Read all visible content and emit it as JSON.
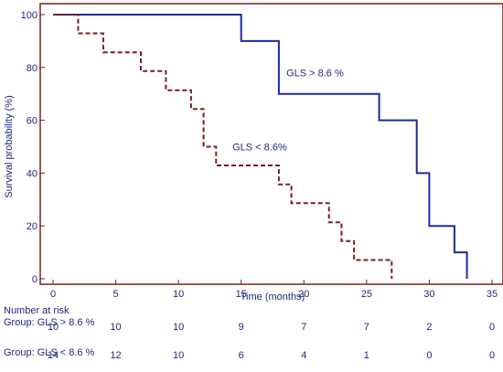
{
  "chart_data": {
    "type": "line",
    "subtype": "kaplan-meier step",
    "title": "",
    "xlabel": "Time (months)",
    "ylabel": "Survival probability (%)",
    "xlim": [
      0,
      35
    ],
    "ylim": [
      0,
      100
    ],
    "xticks": [
      "0",
      "5",
      "10",
      "15",
      "20",
      "25",
      "30",
      "35"
    ],
    "yticks": [
      "0",
      "20",
      "40",
      "60",
      "80",
      "100"
    ],
    "grid": false,
    "frame_color": "#7b1e1e",
    "series": [
      {
        "name": "GLS > 8.6 %",
        "color": "#1f2a9c",
        "style": "solid",
        "points": [
          [
            0,
            100
          ],
          [
            15,
            100
          ],
          [
            15,
            90
          ],
          [
            18,
            90
          ],
          [
            18,
            70
          ],
          [
            26,
            70
          ],
          [
            26,
            60
          ],
          [
            29,
            60
          ],
          [
            29,
            40
          ],
          [
            30,
            40
          ],
          [
            30,
            20
          ],
          [
            32,
            20
          ],
          [
            32,
            10
          ],
          [
            33,
            10
          ],
          [
            33,
            0
          ]
        ]
      },
      {
        "name": "GLS < 8.6%",
        "color": "#7b1e1e",
        "style": "dashed",
        "points": [
          [
            0,
            100
          ],
          [
            2,
            100
          ],
          [
            2,
            92.9
          ],
          [
            4,
            92.9
          ],
          [
            4,
            85.7
          ],
          [
            7,
            85.7
          ],
          [
            7,
            78.6
          ],
          [
            9,
            78.6
          ],
          [
            9,
            71.4
          ],
          [
            11,
            71.4
          ],
          [
            11,
            64.3
          ],
          [
            12,
            64.3
          ],
          [
            12,
            50
          ],
          [
            13,
            50
          ],
          [
            13,
            42.9
          ],
          [
            18,
            42.9
          ],
          [
            18,
            35.7
          ],
          [
            19,
            35.7
          ],
          [
            19,
            28.6
          ],
          [
            22,
            28.6
          ],
          [
            22,
            21.4
          ],
          [
            23,
            21.4
          ],
          [
            23,
            14.3
          ],
          [
            24,
            14.3
          ],
          [
            24,
            7.1
          ],
          [
            27,
            7.1
          ],
          [
            27,
            0
          ]
        ]
      }
    ],
    "annotations": [
      {
        "text": "GLS > 8.6 %",
        "x": 18.6,
        "y": 78
      },
      {
        "text": "GLS < 8.6%",
        "x": 14.3,
        "y": 50
      }
    ]
  },
  "risk_table": {
    "heading": "Number at risk",
    "time_points": [
      0,
      5,
      10,
      15,
      20,
      25,
      30,
      35
    ],
    "groups": [
      {
        "label": "Group: GLS > 8.6 %",
        "values": [
          "10",
          "10",
          "10",
          "9",
          "7",
          "7",
          "2",
          "0"
        ]
      },
      {
        "label": "Group: GLS < 8.6 %",
        "values": [
          "14",
          "12",
          "10",
          "6",
          "4",
          "1",
          "0",
          "0"
        ]
      }
    ]
  }
}
